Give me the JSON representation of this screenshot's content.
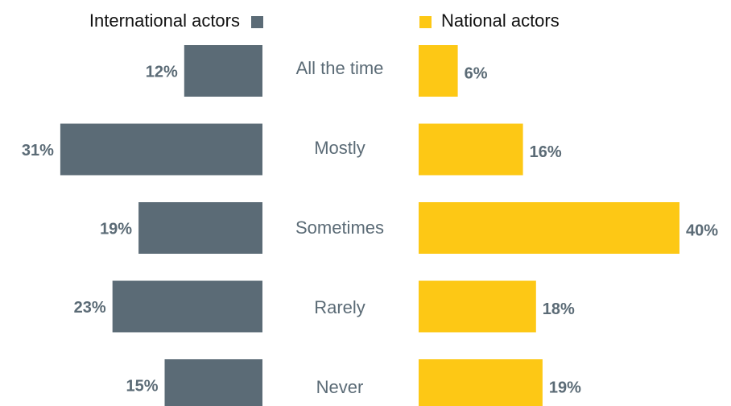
{
  "chart_data": {
    "type": "butterfly-bar",
    "categories": [
      "All the time",
      "Mostly",
      "Sometimes",
      "Rarely",
      "Never"
    ],
    "series": [
      {
        "name": "International actors",
        "color": "#5b6b76",
        "values": [
          12,
          31,
          19,
          23,
          15
        ],
        "value_labels": [
          "12%",
          "31%",
          "19%",
          "23%",
          "15%"
        ]
      },
      {
        "name": "National actors",
        "color": "#fdc815",
        "values": [
          6,
          16,
          40,
          18,
          19
        ],
        "value_labels": [
          "6%",
          "16%",
          "40%",
          "18%",
          "19%"
        ]
      }
    ]
  }
}
